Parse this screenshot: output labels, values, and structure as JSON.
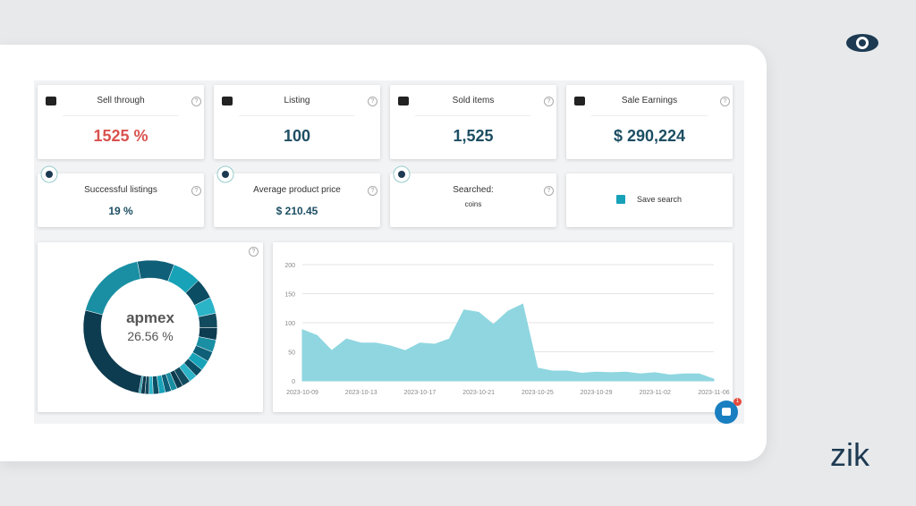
{
  "cards": [
    {
      "label": "Sell through",
      "value": "1525 %"
    },
    {
      "label": "Listing",
      "value": "100"
    },
    {
      "label": "Sold items",
      "value": "1,525"
    },
    {
      "label": "Sale Earnings",
      "value": "$ 290,224"
    }
  ],
  "small_cards": [
    {
      "label": "Successful listings",
      "value": "19 %"
    },
    {
      "label": "Average product price",
      "value": "$ 210.45"
    },
    {
      "label": "Searched:",
      "value": "coins"
    }
  ],
  "save_search": "Save search",
  "help_icon": "?",
  "chat_badge": "1",
  "brand": "zik",
  "donut": {
    "center_label": "apmex",
    "center_value": "26.56 %",
    "values": [
      26.56,
      18,
      9,
      7,
      5,
      4,
      3.5,
      3,
      3,
      2.5,
      2.5,
      2,
      2,
      2,
      1.5,
      1.5,
      1.5,
      1.5,
      1.44,
      1,
      1,
      1,
      0.5
    ],
    "palette": [
      "#0d3b4f",
      "#1a8fa3",
      "#0f5f78",
      "#17a2b8",
      "#0b4d63",
      "#2bb3c8",
      "#124a5e"
    ]
  },
  "trend_chart": {
    "type": "area",
    "color": "#8fd6e0",
    "x": [
      "2023-10-09",
      "2023-10-10",
      "2023-10-11",
      "2023-10-12",
      "2023-10-13",
      "2023-10-14",
      "2023-10-15",
      "2023-10-16",
      "2023-10-17",
      "2023-10-18",
      "2023-10-19",
      "2023-10-20",
      "2023-10-21",
      "2023-10-22",
      "2023-10-23",
      "2023-10-24",
      "2023-10-25",
      "2023-10-26",
      "2023-10-27",
      "2023-10-28",
      "2023-10-29",
      "2023-10-30",
      "2023-10-31",
      "2023-11-01",
      "2023-11-02",
      "2023-11-03",
      "2023-11-04",
      "2023-11-05",
      "2023-11-06"
    ],
    "values": [
      88,
      78,
      52,
      72,
      65,
      65,
      60,
      52,
      65,
      63,
      72,
      122,
      118,
      97,
      120,
      132,
      22,
      17,
      17,
      13,
      15,
      14,
      15,
      12,
      14,
      10,
      12,
      12,
      3
    ],
    "ylim": [
      0,
      200
    ],
    "yticks": [
      0,
      50,
      100,
      150,
      200
    ],
    "xticks": [
      "2023-10-09",
      "2023-10-13",
      "2023-10-17",
      "2023-10-21",
      "2023-10-25",
      "2023-10-29",
      "2023-11-02",
      "2023-11-06"
    ],
    "grid": true
  }
}
